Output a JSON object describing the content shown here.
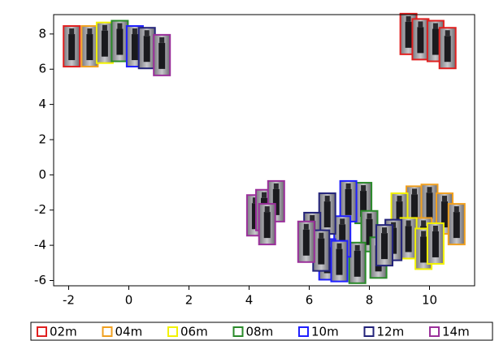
{
  "chart_data": {
    "type": "thumbnail-scatter",
    "xlim": [
      -2.5,
      11.5
    ],
    "ylim": [
      -6.3,
      9.1
    ],
    "xticks": [
      -2,
      0,
      2,
      4,
      6,
      8,
      10
    ],
    "yticks": [
      -6,
      -4,
      -2,
      0,
      2,
      4,
      6,
      8
    ],
    "legend": "bottom",
    "series": [
      {
        "name": "02m",
        "color": "#e02020",
        "x": [
          -1.9,
          9.3,
          9.7,
          10.2,
          10.6
        ],
        "y": [
          7.3,
          8.0,
          7.7,
          7.6,
          7.2
        ]
      },
      {
        "name": "04m",
        "color": "#f0a020",
        "x": [
          -1.3,
          9.5,
          10.0,
          10.5,
          10.9,
          9.8
        ],
        "y": [
          7.3,
          -1.8,
          -1.7,
          -2.2,
          -2.8,
          -3.6
        ]
      },
      {
        "name": "06m",
        "color": "#f2f200",
        "x": [
          -0.8,
          9.0,
          9.3,
          9.8,
          10.2
        ],
        "y": [
          7.5,
          -2.2,
          -3.6,
          -4.2,
          -3.9
        ]
      },
      {
        "name": "08m",
        "color": "#2a8a2a",
        "x": [
          -0.3,
          7.8,
          8.0,
          8.3,
          7.6
        ],
        "y": [
          7.6,
          -1.6,
          -3.2,
          -4.7,
          -5.0
        ]
      },
      {
        "name": "10m",
        "color": "#1f1fff",
        "x": [
          0.2,
          7.3,
          7.1,
          6.6,
          7.0
        ],
        "y": [
          7.3,
          -1.5,
          -3.5,
          -4.8,
          -4.9
        ]
      },
      {
        "name": "12m",
        "color": "#23237a",
        "x": [
          0.6,
          6.6,
          6.1,
          6.4,
          8.8,
          8.5
        ],
        "y": [
          7.2,
          -2.2,
          -3.3,
          -4.3,
          -3.7,
          -4.0
        ]
      },
      {
        "name": "14m",
        "color": "#9b309b",
        "x": [
          1.1,
          4.2,
          4.5,
          4.9,
          4.6,
          5.9
        ],
        "y": [
          6.8,
          -2.3,
          -2.0,
          -1.5,
          -2.8,
          -3.8
        ]
      }
    ]
  }
}
